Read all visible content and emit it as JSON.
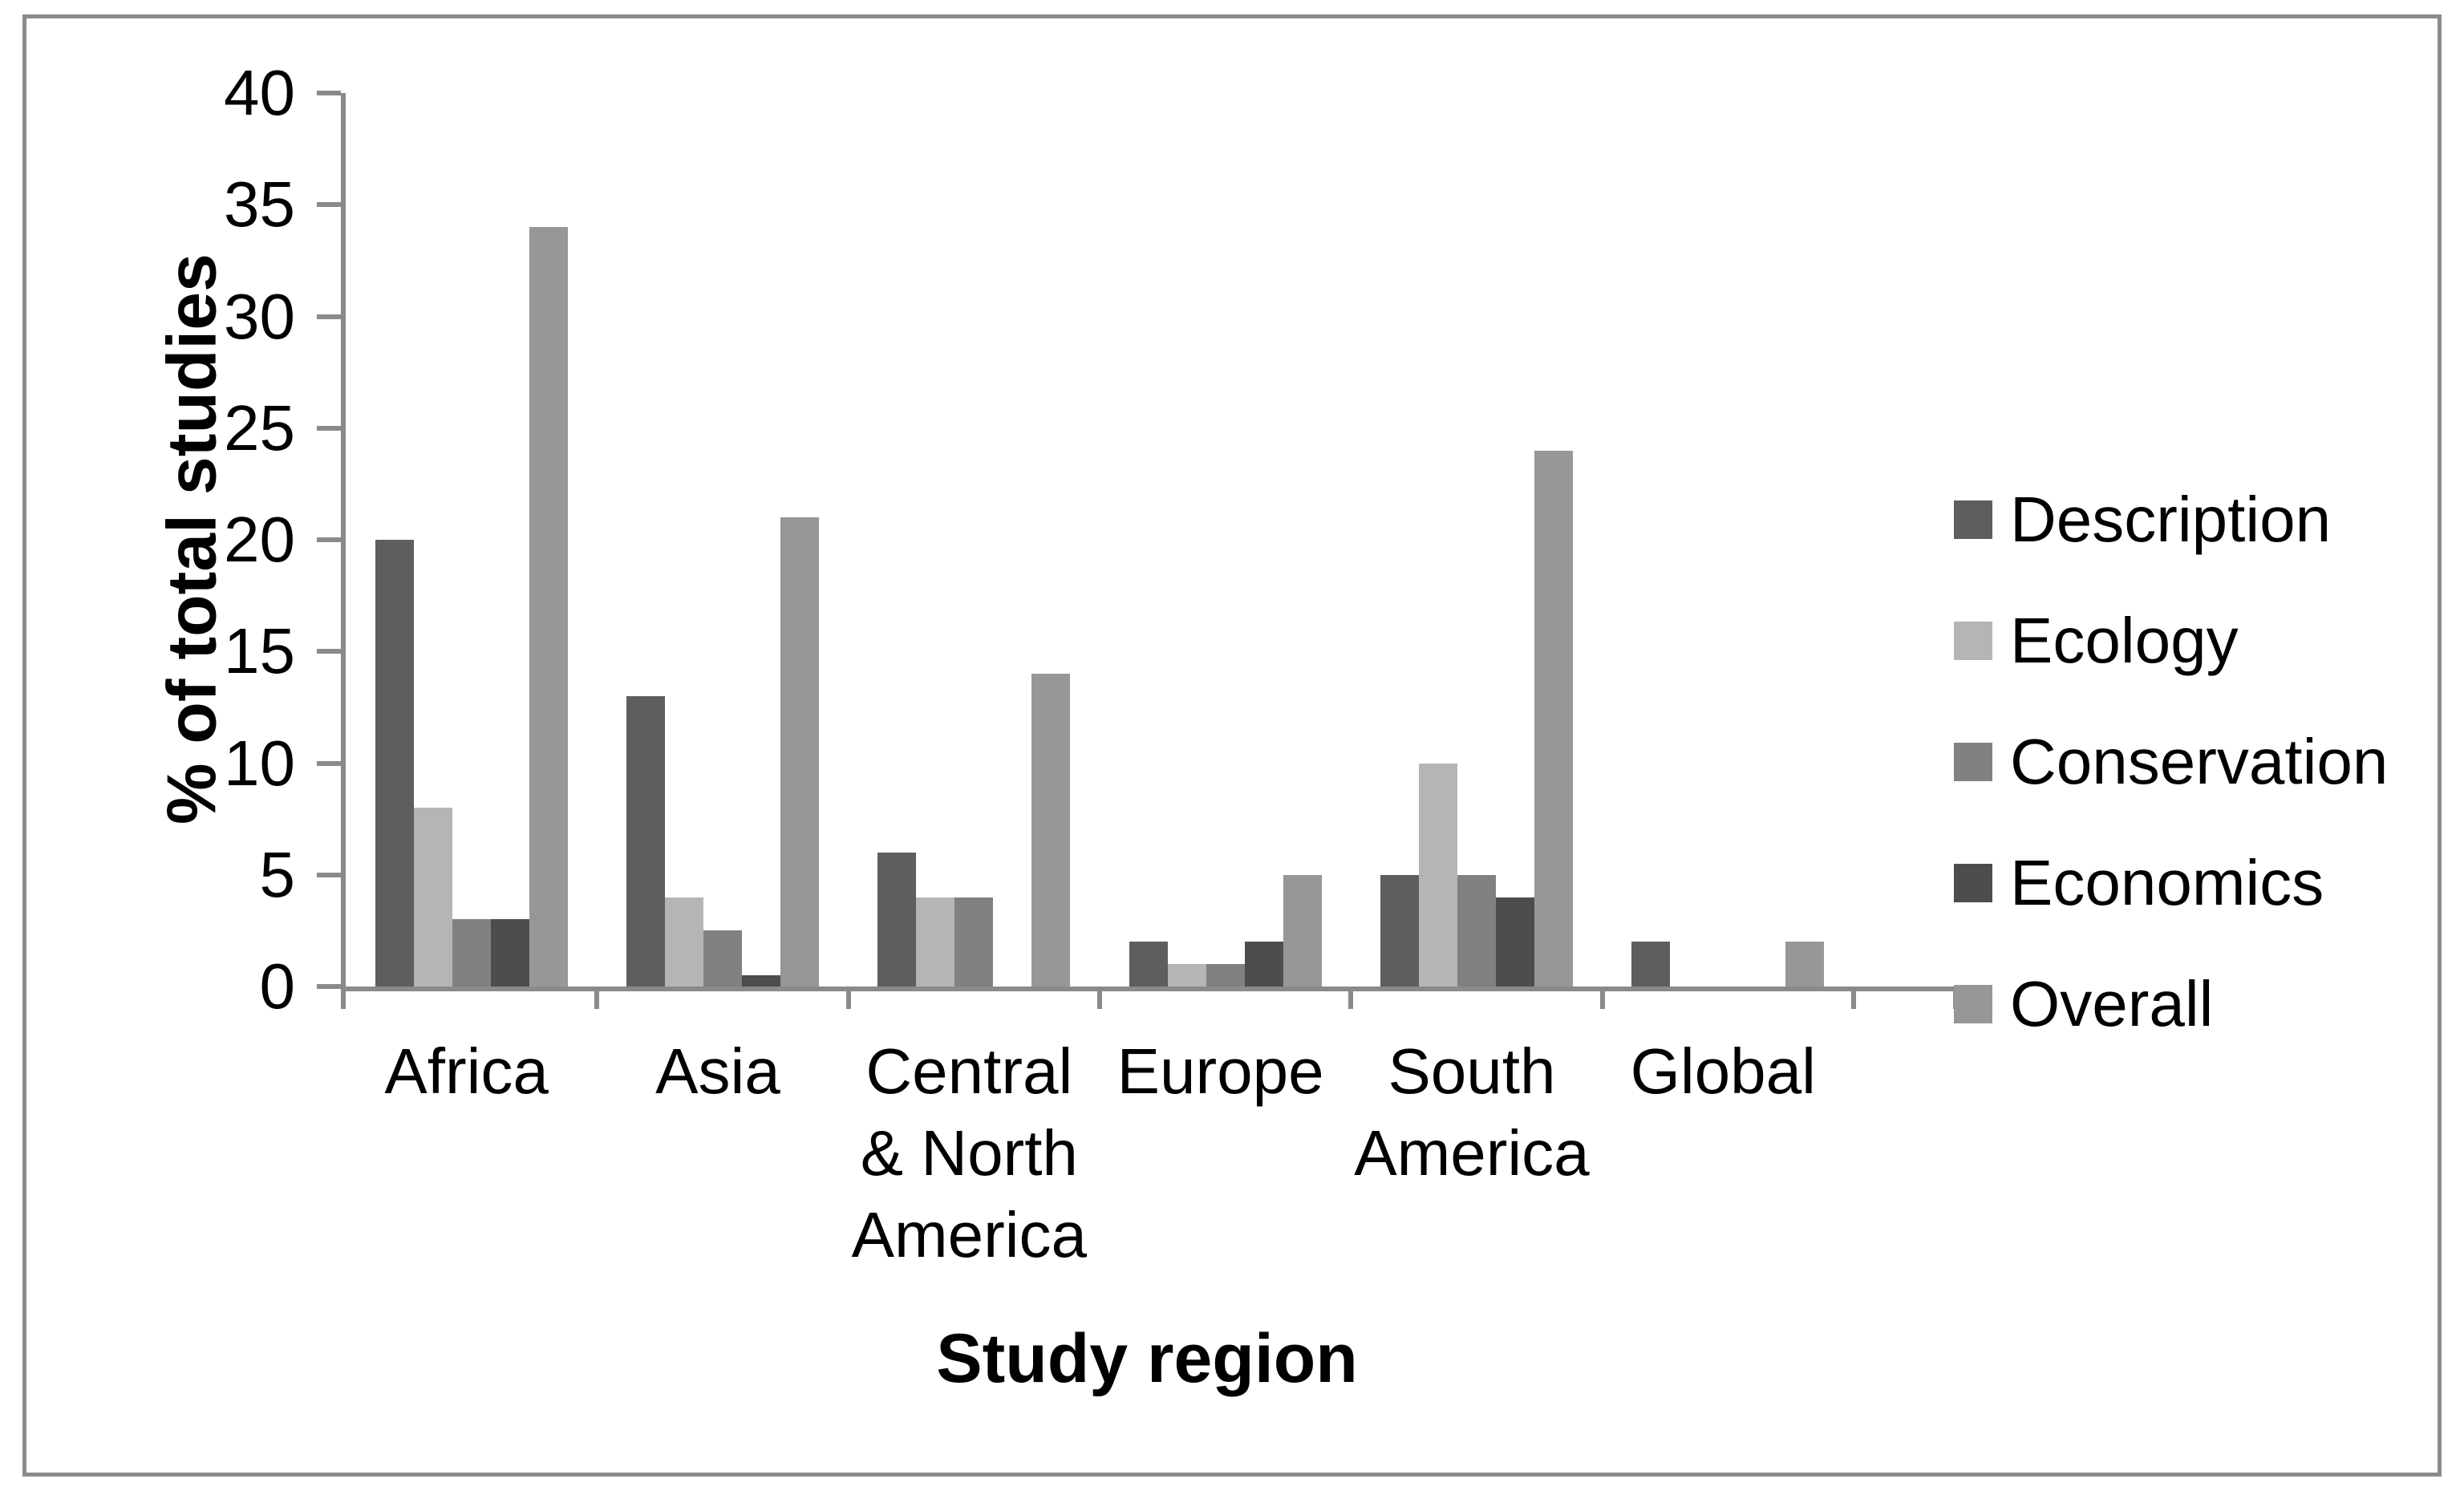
{
  "chart_data": {
    "type": "bar",
    "title": "",
    "categories": [
      "Africa",
      "Asia",
      "Central & North America",
      "Europe",
      "South America",
      "Global"
    ],
    "category_display": [
      [
        "Africa"
      ],
      [
        "Asia"
      ],
      [
        "Central",
        "& North",
        "America"
      ],
      [
        "Europe"
      ],
      [
        "South",
        "America"
      ],
      [
        "Global"
      ]
    ],
    "series": [
      {
        "name": "Description",
        "color": "#5e5e5e",
        "values": [
          20,
          13,
          6,
          2,
          5,
          2
        ]
      },
      {
        "name": "Ecology",
        "color": "#b5b5b5",
        "values": [
          8,
          4,
          4,
          1,
          10,
          0
        ]
      },
      {
        "name": "Conservation",
        "color": "#818181",
        "values": [
          3,
          2.5,
          4,
          1,
          5,
          0
        ]
      },
      {
        "name": "Economics",
        "color": "#4d4d4d",
        "values": [
          3,
          0.5,
          0,
          2,
          4,
          0
        ]
      },
      {
        "name": "Overall",
        "color": "#979797",
        "values": [
          34,
          21,
          14,
          5,
          24,
          2
        ]
      }
    ],
    "xlabel": "Study region",
    "ylabel": "% of total studies",
    "ylim": [
      0,
      40
    ],
    "ytick_step": 5,
    "yticks": [
      0,
      5,
      10,
      15,
      20,
      25,
      30,
      35,
      40
    ],
    "legend_position": "right",
    "grid": false
  },
  "colors": {
    "axis": "#8a8a8a",
    "frame_border": "#8c8c8c",
    "background": "#ffffff",
    "text": "#000000"
  }
}
